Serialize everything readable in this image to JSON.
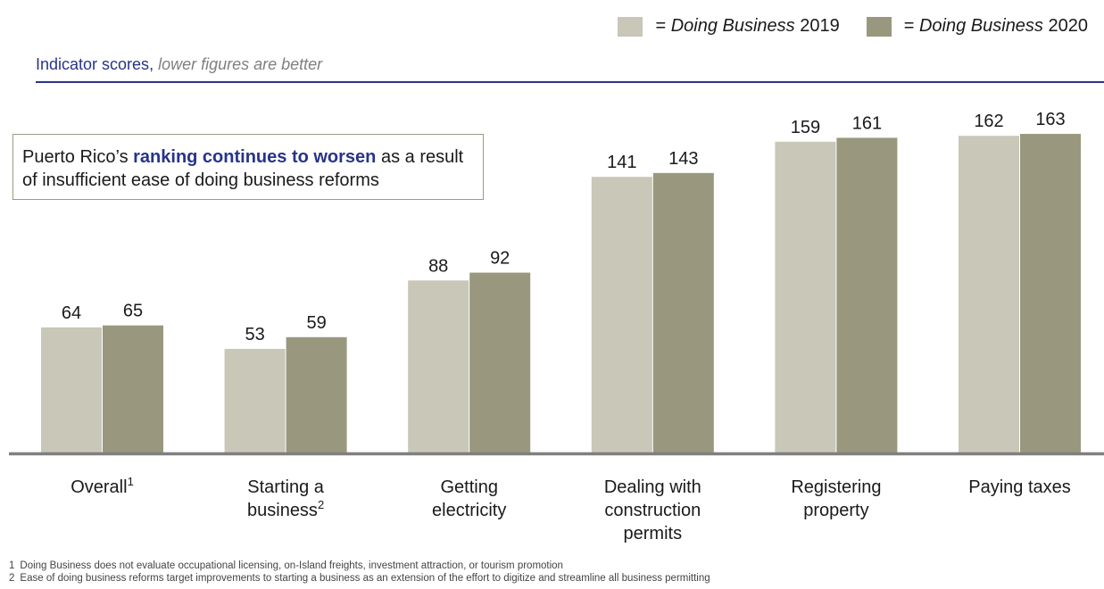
{
  "legend": {
    "items": [
      {
        "prefix": "= ",
        "italic": "Doing Business",
        "suffix": " 2019",
        "color": "#c8c7b8"
      },
      {
        "prefix": "= ",
        "italic": "Doing Business",
        "suffix": " 2020",
        "color": "#99987e"
      }
    ]
  },
  "subtitle": {
    "main": "Indicator scores",
    "separator": ", ",
    "note": "lower figures are better"
  },
  "callout": {
    "before": "Puerto Rico’s ",
    "emphasis": "ranking continues to worsen",
    "after": " as a result of insufficient ease of doing business reforms"
  },
  "chart_data": {
    "type": "bar",
    "categories": [
      {
        "lines": [
          "Overall"
        ],
        "sup": "1"
      },
      {
        "lines": [
          "Starting a",
          "business"
        ],
        "sup": "2"
      },
      {
        "lines": [
          "Getting",
          "electricity"
        ],
        "sup": ""
      },
      {
        "lines": [
          "Dealing with",
          "construction",
          "permits"
        ],
        "sup": ""
      },
      {
        "lines": [
          "Registering",
          "property"
        ],
        "sup": ""
      },
      {
        "lines": [
          "Paying taxes"
        ],
        "sup": ""
      }
    ],
    "series": [
      {
        "name": "Doing Business 2019",
        "color": "#c8c7b8",
        "values": [
          64,
          53,
          88,
          141,
          159,
          162
        ]
      },
      {
        "name": "Doing Business 2020",
        "color": "#99987e",
        "values": [
          65,
          59,
          92,
          143,
          161,
          163
        ]
      }
    ],
    "ylim": [
      0,
      180
    ],
    "axis_color": "#7f7f7f",
    "grid": false,
    "legend_position": "top-right"
  },
  "footnotes": [
    {
      "num": "1",
      "text": "Doing Business does not evaluate occupational licensing, on-Island freights, investment attraction, or tourism promotion"
    },
    {
      "num": "2",
      "text": "Ease of doing business reforms target improvements to starting a business as an extension of the effort to digitize and streamline all business permitting"
    }
  ]
}
